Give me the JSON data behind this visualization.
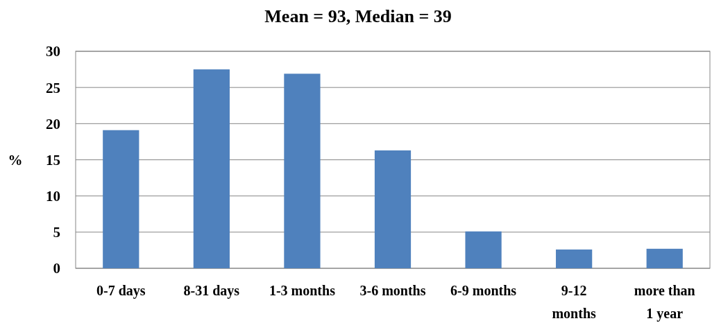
{
  "chart_data": {
    "type": "bar",
    "title": "Mean = 93, Median = 39",
    "ylabel": "%",
    "categories": [
      "0-7 days",
      "8-31 days",
      "1-3 months",
      "3-6 months",
      "6-9 months",
      "9-12 months",
      "more than 1 year"
    ],
    "values": [
      19.1,
      27.5,
      26.9,
      16.3,
      5.1,
      2.6,
      2.7
    ],
    "color": "#4f81bd",
    "ylim": [
      0,
      30
    ],
    "yticks": [
      0,
      5,
      10,
      15,
      20,
      25,
      30
    ],
    "grid": "y"
  }
}
